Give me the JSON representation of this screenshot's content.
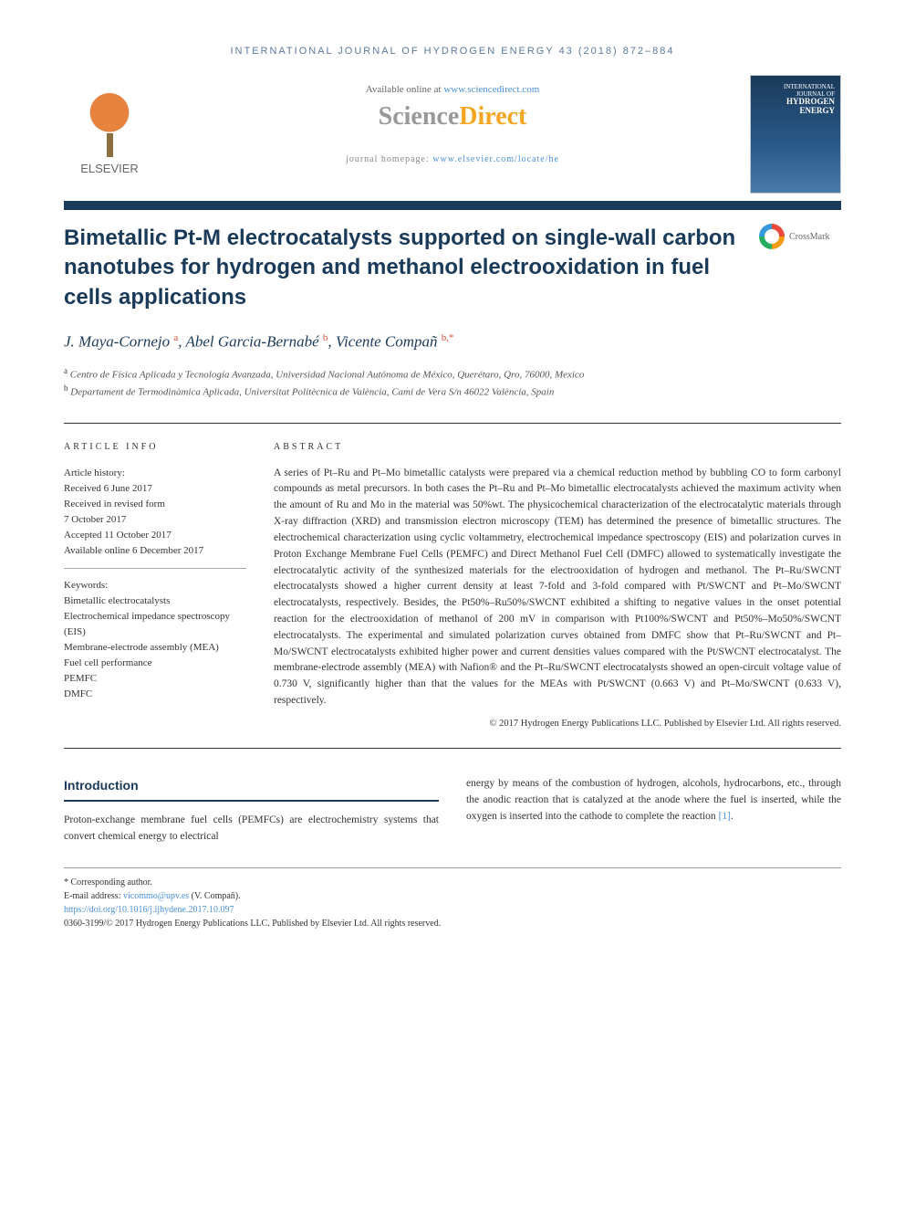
{
  "header": {
    "citation": "INTERNATIONAL JOURNAL OF HYDROGEN ENERGY 43 (2018) 872–884",
    "available_prefix": "Available online at ",
    "available_link": "www.sciencedirect.com",
    "sd_logo_part1": "Science",
    "sd_logo_part2": "Direct",
    "homepage_prefix": "journal homepage: ",
    "homepage_link": "www.elsevier.com/locate/he",
    "elsevier_label": "ELSEVIER",
    "journal_cover_top": "INTERNATIONAL JOURNAL OF",
    "journal_cover_name": "HYDROGEN ENERGY"
  },
  "article": {
    "title": "Bimetallic Pt-M electrocatalysts supported on single-wall carbon nanotubes for hydrogen and methanol electrooxidation in fuel cells applications",
    "crossmark_label": "CrossMark",
    "authors_html": "J. Maya-Cornejo",
    "author1": "J. Maya-Cornejo ",
    "author1_sup": "a",
    "author2": ", Abel Garcia-Bernabé ",
    "author2_sup": "b",
    "author3": ", Vicente Compañ ",
    "author3_sup": "b,*",
    "affil_a_sup": "a",
    "affil_a": " Centro de Física Aplicada y Tecnología Avanzada, Universidad Nacional Autónoma de México, Querétaro, Qro, 76000, Mexico",
    "affil_b_sup": "b",
    "affil_b": " Departament de Termodinàmica Aplicada, Universitat Politècnica de València, Cami de Vera S/n 46022 València, Spain"
  },
  "info": {
    "heading": "ARTICLE INFO",
    "history_label": "Article history:",
    "received": "Received 6 June 2017",
    "revised1": "Received in revised form",
    "revised2": "7 October 2017",
    "accepted": "Accepted 11 October 2017",
    "online": "Available online 6 December 2017",
    "keywords_label": "Keywords:",
    "kw1": "Bimetallic electrocatalysts",
    "kw2": "Electrochemical impedance spectroscopy (EIS)",
    "kw3": "Membrane-electrode assembly (MEA)",
    "kw4": "Fuel cell performance",
    "kw5": "PEMFC",
    "kw6": "DMFC"
  },
  "abstract": {
    "heading": "ABSTRACT",
    "text": "A series of Pt–Ru and Pt–Mo bimetallic catalysts were prepared via a chemical reduction method by bubbling CO to form carbonyl compounds as metal precursors. In both cases the Pt–Ru and Pt–Mo bimetallic electrocatalysts achieved the maximum activity when the amount of Ru and Mo in the material was 50%wt. The physicochemical characterization of the electrocatalytic materials through X-ray diffraction (XRD) and transmission electron microscopy (TEM) has determined the presence of bimetallic structures. The electrochemical characterization using cyclic voltammetry, electrochemical impedance spectroscopy (EIS) and polarization curves in Proton Exchange Membrane Fuel Cells (PEMFC) and Direct Methanol Fuel Cell (DMFC) allowed to systematically investigate the electrocatalytic activity of the synthesized materials for the electrooxidation of hydrogen and methanol. The Pt–Ru/SWCNT electrocatalysts showed a higher current density at least 7-fold and 3-fold compared with Pt/SWCNT and Pt–Mo/SWCNT electrocatalysts, respectively. Besides, the Pt50%–Ru50%/SWCNT exhibited a shifting to negative values in the onset potential reaction for the electrooxidation of methanol of 200 mV in comparison with Pt100%/SWCNT and Pt50%–Mo50%/SWCNT electrocatalysts. The experimental and simulated polarization curves obtained from DMFC show that Pt–Ru/SWCNT and Pt–Mo/SWCNT electrocatalysts exhibited higher power and current densities values compared with the Pt/SWCNT electrocatalyst. The membrane-electrode assembly (MEA) with Nafion® and the Pt–Ru/SWCNT electrocatalysts showed an open-circuit voltage value of 0.730 V, significantly higher than that the values for the MEAs with Pt/SWCNT (0.663 V) and Pt–Mo/SWCNT (0.633 V), respectively.",
    "copyright": "© 2017 Hydrogen Energy Publications LLC. Published by Elsevier Ltd. All rights reserved."
  },
  "body": {
    "intro_heading": "Introduction",
    "col1": "Proton-exchange membrane fuel cells (PEMFCs) are electrochemistry systems that convert chemical energy to electrical",
    "col2_part1": "energy by means of the combustion of hydrogen, alcohols, hydrocarbons, etc., through the anodic reaction that is catalyzed at the anode where the fuel is inserted, while the oxygen is inserted into the cathode to complete the reaction ",
    "col2_ref": "[1]",
    "col2_part2": "."
  },
  "footer": {
    "corr": "* Corresponding author.",
    "email_label": "E-mail address: ",
    "email": "vicommo@upv.es",
    "email_suffix": " (V. Compañ).",
    "doi": "https://doi.org/10.1016/j.ijhydene.2017.10.097",
    "copyright": "0360-3199/© 2017 Hydrogen Energy Publications LLC. Published by Elsevier Ltd. All rights reserved."
  },
  "colors": {
    "brand_blue": "#1a3a5a",
    "link_blue": "#4a90d9",
    "elsevier_orange": "#e8833f",
    "sd_orange": "#f5a623",
    "sup_red": "#e74c3c"
  }
}
